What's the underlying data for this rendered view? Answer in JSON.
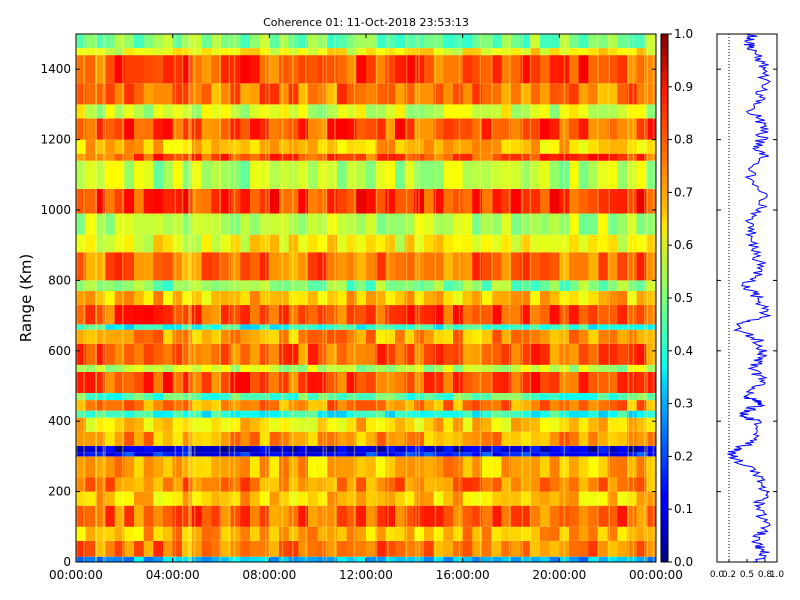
{
  "chart_data": [
    {
      "type": "heatmap",
      "title": "Coherence 01: 11-Oct-2018 23:53:13",
      "xlabel": "",
      "ylabel": "Range (Km)",
      "x_ticks": [
        "00:00:00",
        "04:00:00",
        "08:00:00",
        "12:00:00",
        "16:00:00",
        "20:00:00",
        "00:00:00"
      ],
      "y_ticks": [
        0,
        200,
        400,
        600,
        800,
        1000,
        1200,
        1400
      ],
      "ylim": [
        0,
        1500
      ],
      "colorbar": {
        "colormap": "jet",
        "range": [
          0.0,
          1.0
        ],
        "ticks": [
          "0.0",
          "0.1",
          "0.2",
          "0.3",
          "0.4",
          "0.5",
          "0.6",
          "0.7",
          "0.8",
          "0.9",
          "1.0"
        ]
      },
      "range_band_coherence": [
        {
          "range_km": [
            0,
            15
          ],
          "value": 0.3
        },
        {
          "range_km": [
            15,
            60
          ],
          "value": 0.76
        },
        {
          "range_km": [
            60,
            100
          ],
          "value": 0.7
        },
        {
          "range_km": [
            100,
            160
          ],
          "value": 0.78
        },
        {
          "range_km": [
            160,
            200
          ],
          "value": 0.68
        },
        {
          "range_km": [
            200,
            240
          ],
          "value": 0.75
        },
        {
          "range_km": [
            240,
            300
          ],
          "value": 0.7
        },
        {
          "range_km": [
            300,
            312
          ],
          "value": 0.15
        },
        {
          "range_km": [
            312,
            330
          ],
          "value": 0.08
        },
        {
          "range_km": [
            330,
            370
          ],
          "value": 0.72
        },
        {
          "range_km": [
            370,
            410
          ],
          "value": 0.66
        },
        {
          "range_km": [
            410,
            430
          ],
          "value": 0.4
        },
        {
          "range_km": [
            430,
            460
          ],
          "value": 0.74
        },
        {
          "range_km": [
            460,
            480
          ],
          "value": 0.45
        },
        {
          "range_km": [
            480,
            540
          ],
          "value": 0.8
        },
        {
          "range_km": [
            540,
            560
          ],
          "value": 0.55
        },
        {
          "range_km": [
            560,
            620
          ],
          "value": 0.78
        },
        {
          "range_km": [
            620,
            660
          ],
          "value": 0.72
        },
        {
          "range_km": [
            660,
            675
          ],
          "value": 0.4
        },
        {
          "range_km": [
            675,
            730
          ],
          "value": 0.8
        },
        {
          "range_km": [
            730,
            770
          ],
          "value": 0.68
        },
        {
          "range_km": [
            770,
            800
          ],
          "value": 0.5
        },
        {
          "range_km": [
            800,
            880
          ],
          "value": 0.77
        },
        {
          "range_km": [
            880,
            930
          ],
          "value": 0.62
        },
        {
          "range_km": [
            930,
            990
          ],
          "value": 0.55
        },
        {
          "range_km": [
            990,
            1060
          ],
          "value": 0.82
        },
        {
          "range_km": [
            1060,
            1140
          ],
          "value": 0.55
        },
        {
          "range_km": [
            1140,
            1160
          ],
          "value": 0.8
        },
        {
          "range_km": [
            1160,
            1200
          ],
          "value": 0.68
        },
        {
          "range_km": [
            1200,
            1260
          ],
          "value": 0.8
        },
        {
          "range_km": [
            1260,
            1300
          ],
          "value": 0.58
        },
        {
          "range_km": [
            1300,
            1360
          ],
          "value": 0.76
        },
        {
          "range_km": [
            1360,
            1440
          ],
          "value": 0.8
        },
        {
          "range_km": [
            1440,
            1460
          ],
          "value": 0.62
        },
        {
          "range_km": [
            1460,
            1500
          ],
          "value": 0.5
        }
      ]
    },
    {
      "type": "line",
      "title": "",
      "xlabel": "",
      "ylabel": "",
      "x_ticks": [
        "0.0",
        "0.2",
        "0.5",
        "0.8",
        "1.0"
      ],
      "xlim": [
        0.0,
        1.0
      ],
      "ylim": [
        0,
        1500
      ],
      "series": [
        {
          "color": "#0000ff",
          "points": [
            [
              0.72,
              0
            ],
            [
              0.78,
              30
            ],
            [
              0.65,
              60
            ],
            [
              0.8,
              100
            ],
            [
              0.7,
              160
            ],
            [
              0.78,
              200
            ],
            [
              0.68,
              250
            ],
            [
              0.25,
              300
            ],
            [
              0.3,
              320
            ],
            [
              0.7,
              350
            ],
            [
              0.65,
              400
            ],
            [
              0.42,
              420
            ],
            [
              0.72,
              450
            ],
            [
              0.5,
              470
            ],
            [
              0.78,
              510
            ],
            [
              0.6,
              550
            ],
            [
              0.78,
              590
            ],
            [
              0.7,
              630
            ],
            [
              0.3,
              668
            ],
            [
              0.8,
              700
            ],
            [
              0.68,
              750
            ],
            [
              0.5,
              785
            ],
            [
              0.75,
              840
            ],
            [
              0.6,
              900
            ],
            [
              0.55,
              960
            ],
            [
              0.8,
              1020
            ],
            [
              0.55,
              1100
            ],
            [
              0.8,
              1150
            ],
            [
              0.68,
              1180
            ],
            [
              0.8,
              1230
            ],
            [
              0.58,
              1280
            ],
            [
              0.75,
              1330
            ],
            [
              0.8,
              1400
            ],
            [
              0.62,
              1450
            ],
            [
              0.5,
              1480
            ],
            [
              0.6,
              1500
            ]
          ]
        }
      ],
      "reference_line": {
        "x": 0.2,
        "style": "dotted"
      }
    }
  ]
}
